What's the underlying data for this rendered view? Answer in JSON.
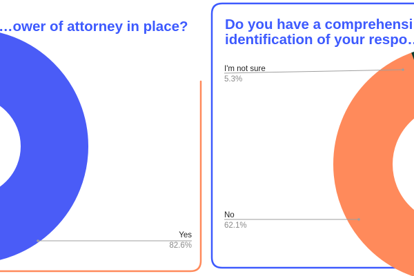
{
  "colors": {
    "frame_orange": "#ff8a5b",
    "frame_blue": "#3d5afe",
    "title": "#3d5afe",
    "leader": "#9e9e9e"
  },
  "chart_data": [
    {
      "type": "pie",
      "variant": "donut",
      "title": "…ower of attorney in place?",
      "slices": [
        {
          "label": "Yes",
          "value": 82.6,
          "value_label": "82.6%",
          "color": "#4a5cf7"
        }
      ]
    },
    {
      "type": "pie",
      "variant": "donut",
      "title_lines": [
        "Do you have a comprehensi…",
        "identification of your respo…"
      ],
      "slices": [
        {
          "label": "I'm not sure",
          "value": 5.3,
          "value_label": "5.3%",
          "color": "#0d3b2e"
        },
        {
          "label": "No",
          "value": 62.1,
          "value_label": "62.1%",
          "color": "#ff8a5b"
        }
      ]
    }
  ]
}
